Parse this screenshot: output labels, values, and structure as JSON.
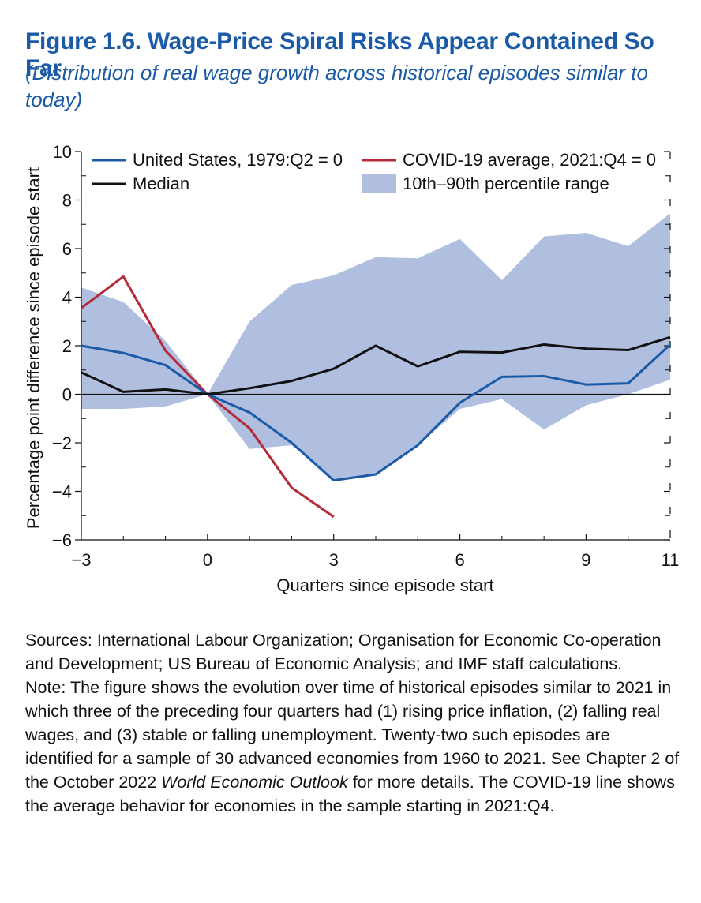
{
  "figure": {
    "title": "Figure 1.6.  Wage-Price Spiral Risks Appear Contained So Far",
    "subtitle": "(Distribution of real wage growth across historical episodes similar to today)"
  },
  "chart_data": {
    "type": "line",
    "xlabel": "Quarters since episode start",
    "ylabel": "Percentage point difference since episode start",
    "xlim": [
      -3,
      11
    ],
    "ylim": [
      -6,
      10
    ],
    "x_ticks": [
      -3,
      0,
      3,
      6,
      9,
      11
    ],
    "x_tick_labels": [
      "−3",
      "0",
      "3",
      "6",
      "9",
      "11"
    ],
    "y_ticks": [
      -6,
      -4,
      -2,
      0,
      2,
      4,
      6,
      8,
      10
    ],
    "y_tick_labels": [
      "−6",
      "−4",
      "−2",
      "0",
      "2",
      "4",
      "6",
      "8",
      "10"
    ],
    "legend_position": "top",
    "band": {
      "name": "10th–90th percentile range",
      "color": "#b0bedf",
      "x": [
        -3,
        -2,
        -1,
        0,
        1,
        2,
        3,
        4,
        5,
        6,
        7,
        8,
        9,
        10,
        11
      ],
      "upper": [
        4.4,
        3.8,
        2.2,
        0,
        3.0,
        4.5,
        4.9,
        5.65,
        5.6,
        6.4,
        4.7,
        6.5,
        6.65,
        6.1,
        7.45
      ],
      "lower": [
        -0.6,
        -0.6,
        -0.5,
        0,
        -2.25,
        -2.1,
        -3.5,
        -3.3,
        -2.1,
        -0.6,
        -0.2,
        -1.45,
        -0.45,
        0.0,
        0.6
      ]
    },
    "series": [
      {
        "name": "United States, 1979:Q2 = 0",
        "color": "#1a5aa6",
        "x": [
          -3,
          -2,
          -1,
          0,
          1,
          2,
          3,
          4,
          5,
          6,
          7,
          8,
          9,
          10,
          11
        ],
        "values": [
          2.0,
          1.7,
          1.2,
          0,
          -0.75,
          -2.0,
          -3.55,
          -3.3,
          -2.1,
          -0.35,
          0.72,
          0.75,
          0.4,
          0.45,
          2.05
        ]
      },
      {
        "name": "COVID-19 average, 2021:Q4 = 0",
        "color": "#b32a3a",
        "x": [
          -3,
          -2,
          -1,
          0,
          1,
          2,
          3
        ],
        "values": [
          3.55,
          4.85,
          1.8,
          0,
          -1.4,
          -3.85,
          -5.05
        ]
      },
      {
        "name": "Median",
        "color": "#111111",
        "x": [
          -3,
          -2,
          -1,
          0,
          1,
          2,
          3,
          4,
          5,
          6,
          7,
          8,
          9,
          10,
          11
        ],
        "values": [
          0.9,
          0.1,
          0.2,
          0,
          0.25,
          0.55,
          1.05,
          2.0,
          1.15,
          1.75,
          1.72,
          2.05,
          1.88,
          1.82,
          2.35
        ]
      }
    ]
  },
  "notes": {
    "sources": "Sources: International Labour Organization; Organisation for Economic Co-operation and Development; US Bureau of Economic Analysis; and IMF staff calculations.",
    "note_before": "Note: The figure shows the evolution over time of historical episodes similar to 2021 in which three of the preceding four quarters had (1) rising price inflation, (2) falling real wages, and (3) stable or falling unemployment. Twenty-two such episodes are identified for a sample of 30 advanced economies from 1960 to 2021. See Chapter 2 of the October 2022 ",
    "note_italic": "World Economic Outlook",
    "note_after": " for more details. The COVID-19 line shows the average behavior for economies in the sample starting in 2021:Q4."
  }
}
